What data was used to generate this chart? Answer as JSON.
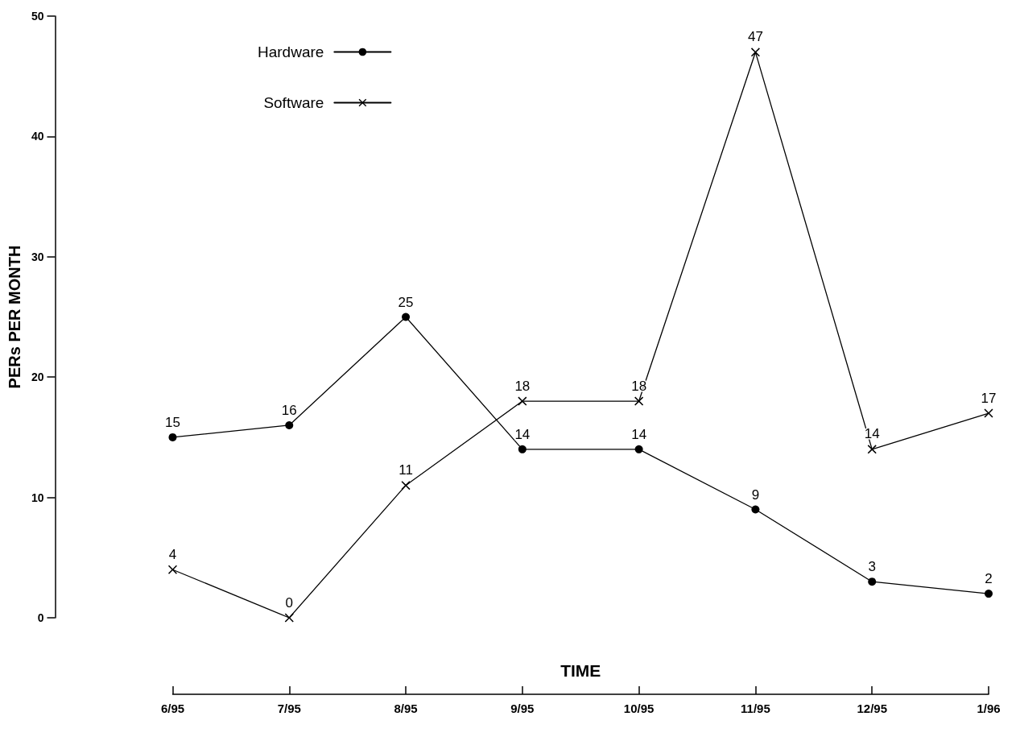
{
  "chart_data": {
    "type": "line",
    "xlabel": "TIME",
    "ylabel": "PERs PER MONTH",
    "categories": [
      "6/95",
      "7/95",
      "8/95",
      "9/95",
      "10/95",
      "11/95",
      "12/95",
      "1/96"
    ],
    "series": [
      {
        "name": "Hardware",
        "color": "#000000",
        "marker": "circle",
        "values": [
          15,
          16,
          25,
          14,
          14,
          9,
          3,
          2
        ]
      },
      {
        "name": "Software",
        "color": "#000000",
        "marker": "cross",
        "values": [
          4,
          0,
          11,
          18,
          18,
          47,
          14,
          17
        ]
      }
    ],
    "ylim": [
      0,
      50
    ],
    "yticks": [
      0,
      10,
      20,
      30,
      40,
      50
    ],
    "grid": false,
    "legend": "top left",
    "data_labels": true,
    "line_style": "solid"
  }
}
